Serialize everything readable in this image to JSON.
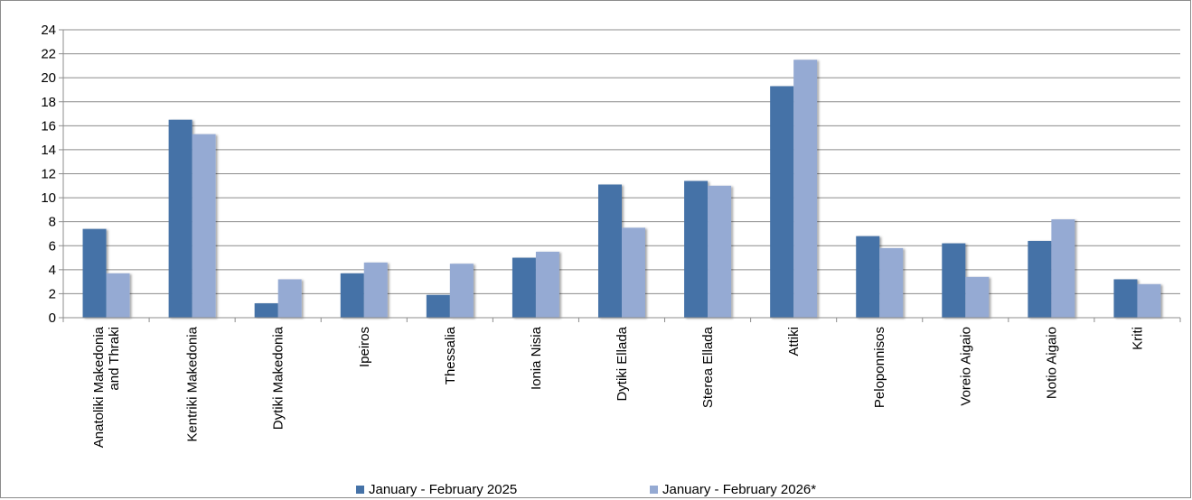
{
  "chart_data": {
    "type": "bar",
    "title": "",
    "xlabel": "",
    "ylabel": "",
    "ylim": [
      0,
      24
    ],
    "yticks": [
      0,
      2,
      4,
      6,
      8,
      10,
      12,
      14,
      16,
      18,
      20,
      22,
      24
    ],
    "grid": true,
    "legend_position": "bottom",
    "categories": [
      [
        "Anatoliki Makedonia",
        "and Thraki"
      ],
      [
        "Kentriki Makedonia"
      ],
      [
        "Dytiki Makedonia"
      ],
      [
        "Ipeiros"
      ],
      [
        "Thessalia"
      ],
      [
        "Ionia Nisia"
      ],
      [
        "Dytiki Ellada"
      ],
      [
        "Sterea Ellada"
      ],
      [
        "Attiki"
      ],
      [
        "Peloponnisos"
      ],
      [
        "Voreio Aigaio"
      ],
      [
        "Notio Aigaio"
      ],
      [
        "Kriti"
      ]
    ],
    "series": [
      {
        "name": "January - February 2025",
        "color": "#4572a7",
        "values": [
          7.4,
          16.5,
          1.2,
          3.7,
          1.9,
          5.0,
          11.1,
          11.4,
          19.3,
          6.8,
          6.2,
          6.4,
          3.2
        ]
      },
      {
        "name": "January - February 2026*",
        "color": "#95aad3",
        "values": [
          3.7,
          15.3,
          3.2,
          4.6,
          4.5,
          5.5,
          7.5,
          11.0,
          21.5,
          5.8,
          3.4,
          8.2,
          2.8
        ]
      }
    ]
  }
}
